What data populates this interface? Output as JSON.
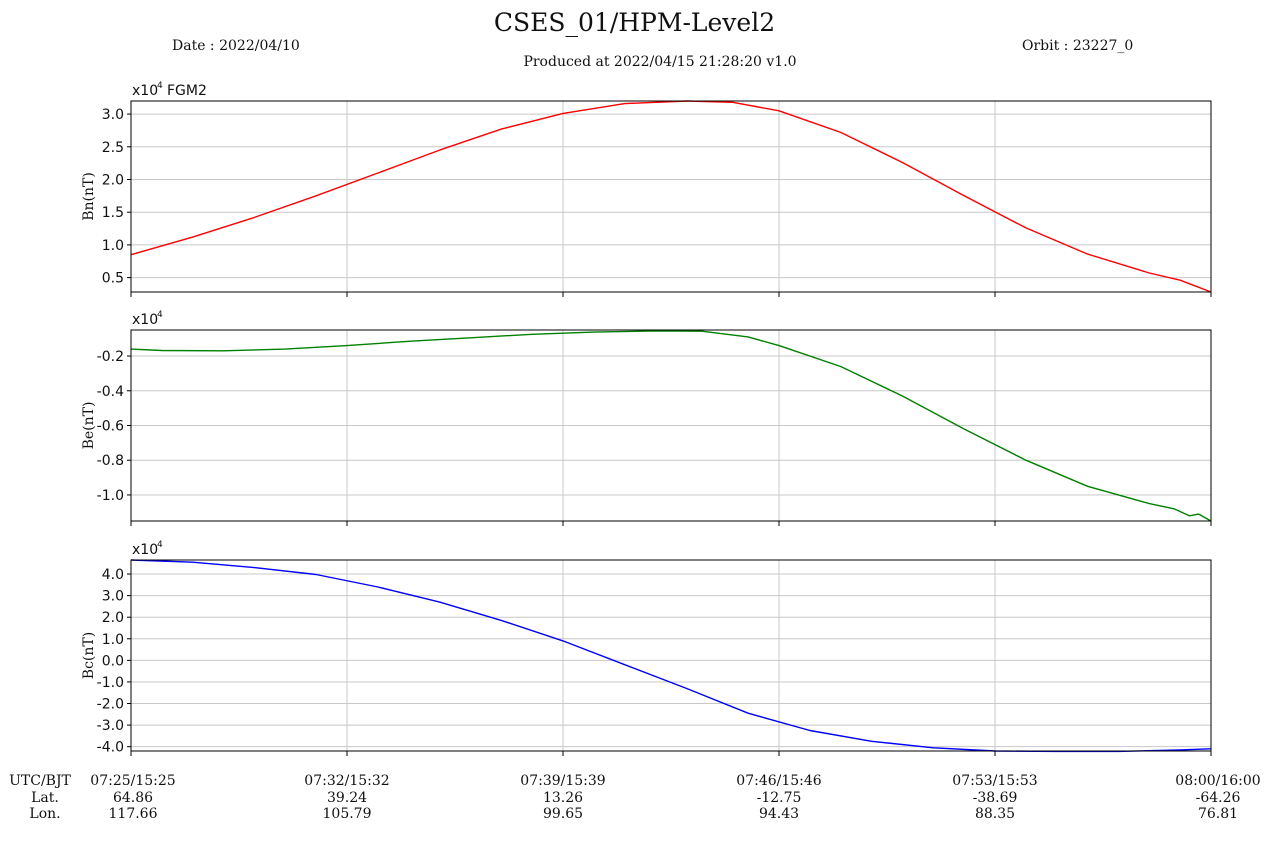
{
  "header": {
    "title": "CSES_01/HPM-Level2",
    "date": "Date : 2022/04/10",
    "produced": "Produced at 2022/04/15  21:28:20 v1.0",
    "orbit": "Orbit : 23227_0"
  },
  "chart_data": [
    {
      "type": "line",
      "instrument_label": "FGM2",
      "scale_label": "x10",
      "scale_exponent": "4",
      "ylabel": "Bn(nT)",
      "color": "#ff0000",
      "ylim": [
        0.28,
        3.2
      ],
      "yticks": [
        0.5,
        1.0,
        1.5,
        2.0,
        2.5,
        3.0
      ],
      "ytick_labels": [
        "0.5",
        "1.0",
        "1.5",
        "2.0",
        "2.5",
        "3.0"
      ],
      "grid": true,
      "x_minutes": [
        0,
        2,
        4,
        6,
        8,
        10,
        12,
        14,
        16,
        18,
        19.5,
        21,
        23,
        25,
        27,
        29,
        31,
        33,
        34,
        35
      ],
      "values": [
        0.85,
        1.12,
        1.42,
        1.75,
        2.1,
        2.45,
        2.77,
        3.01,
        3.16,
        3.2,
        3.18,
        3.05,
        2.72,
        2.26,
        1.75,
        1.26,
        0.86,
        0.57,
        0.46,
        0.28
      ]
    },
    {
      "type": "line",
      "instrument_label": "",
      "scale_label": "x10",
      "scale_exponent": "4",
      "ylabel": "Be(nT)",
      "color": "#008000",
      "ylim": [
        -1.15,
        -0.05
      ],
      "yticks": [
        -1.0,
        -0.8,
        -0.6,
        -0.4,
        -0.2
      ],
      "ytick_labels": [
        "-1.0",
        "-0.8",
        "-0.6",
        "-0.4",
        "-0.2"
      ],
      "grid": true,
      "x_minutes": [
        0,
        1,
        3,
        5,
        7,
        9,
        11,
        13,
        15,
        17,
        18.5,
        20,
        21,
        23,
        25,
        27,
        29,
        31,
        33,
        33.8,
        34.3,
        34.6,
        35
      ],
      "values": [
        -0.16,
        -0.168,
        -0.17,
        -0.16,
        -0.14,
        -0.115,
        -0.095,
        -0.075,
        -0.062,
        -0.055,
        -0.057,
        -0.09,
        -0.14,
        -0.26,
        -0.43,
        -0.62,
        -0.8,
        -0.95,
        -1.05,
        -1.08,
        -1.12,
        -1.11,
        -1.15
      ]
    },
    {
      "type": "line",
      "instrument_label": "",
      "scale_label": "x10",
      "scale_exponent": "4",
      "ylabel": "Bc(nT)",
      "color": "#0000ff",
      "ylim": [
        -4.2,
        4.65
      ],
      "yticks": [
        -4.0,
        -3.0,
        -2.0,
        -1.0,
        0.0,
        1.0,
        2.0,
        3.0,
        4.0
      ],
      "ytick_labels": [
        "-4.0",
        "-3.0",
        "-2.0",
        "-1.0",
        "0.0",
        "1.0",
        "2.0",
        "3.0",
        "4.0"
      ],
      "grid": true,
      "x_minutes": [
        0,
        2,
        4,
        6,
        8,
        10,
        12,
        14,
        16,
        18,
        20,
        22,
        24,
        26,
        28,
        30,
        32,
        34,
        35
      ],
      "values": [
        4.65,
        4.55,
        4.3,
        3.98,
        3.4,
        2.7,
        1.85,
        0.9,
        -0.2,
        -1.3,
        -2.45,
        -3.25,
        -3.75,
        -4.05,
        -4.2,
        -4.22,
        -4.22,
        -4.15,
        -4.1
      ]
    }
  ],
  "x_axis": {
    "xlim": [
      0,
      35
    ],
    "tick_minutes": [
      0,
      7,
      14,
      21,
      28,
      35
    ],
    "row_labels": [
      "UTC/BJT",
      "Lat.",
      "Lon."
    ],
    "time_labels": [
      "07:25/15:25",
      "07:32/15:32",
      "07:39/15:39",
      "07:46/15:46",
      "07:53/15:53",
      "08:00/16:00"
    ],
    "lat_labels": [
      "64.86",
      "39.24",
      "13.26",
      "-12.75",
      "-38.69",
      "-64.26"
    ],
    "lon_labels": [
      "117.66",
      "105.79",
      "99.65",
      "94.43",
      "88.35",
      "76.81"
    ]
  }
}
